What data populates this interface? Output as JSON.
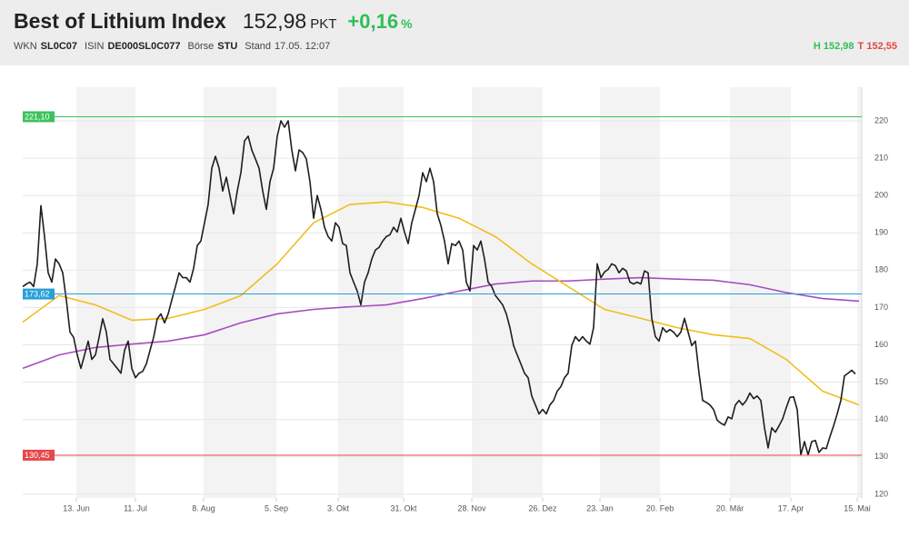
{
  "header": {
    "title": "Best of Lithium Index",
    "price": "152,98",
    "price_unit": "PKT",
    "change": "+0,16",
    "change_unit": "%",
    "fields": [
      {
        "label": "WKN",
        "value": "SL0C07"
      },
      {
        "label": "ISIN",
        "value": "DE000SL0C077"
      },
      {
        "label": "Börse",
        "value": "STU"
      },
      {
        "label": "Stand",
        "value": "17.05. 12:07"
      }
    ],
    "high_label": "H",
    "high": "152,98",
    "low_label": "T",
    "low": "152,55"
  },
  "chart_data": {
    "type": "line",
    "ylim": [
      119,
      229
    ],
    "yticks": [
      120,
      130,
      140,
      150,
      160,
      170,
      180,
      190,
      200,
      210,
      220
    ],
    "xlim": [
      0,
      230.75
    ],
    "xticks": [
      {
        "value": 14.75,
        "label": "13. Jun"
      },
      {
        "value": 31,
        "label": "11. Jul"
      },
      {
        "value": 49.75,
        "label": "8. Aug"
      },
      {
        "value": 69.75,
        "label": "5. Sep"
      },
      {
        "value": 86.75,
        "label": "3. Okt"
      },
      {
        "value": 104.75,
        "label": "31. Okt"
      },
      {
        "value": 123.5,
        "label": "28. Nov"
      },
      {
        "value": 143,
        "label": "26. Dez"
      },
      {
        "value": 158.75,
        "label": "23. Jan"
      },
      {
        "value": 175.25,
        "label": "20. Feb"
      },
      {
        "value": 194.5,
        "label": "20. Mär"
      },
      {
        "value": 211.25,
        "label": "17. Apr"
      },
      {
        "value": 229.5,
        "label": "15. Mai"
      }
    ],
    "grid": true,
    "levels": [
      {
        "value": 221.1,
        "label": "221,10",
        "color": "#3cc25f"
      },
      {
        "value": 173.62,
        "label": "173,62",
        "color": "#2a9fd8"
      },
      {
        "value": 130.45,
        "label": "130,45",
        "color": "#e5484d"
      }
    ],
    "series": [
      {
        "color": "#a64cbf",
        "x": [
          0,
          10,
          20,
          30,
          40,
          50,
          60,
          70,
          80,
          90,
          100,
          110,
          120,
          130,
          140,
          150,
          160,
          170,
          180,
          190,
          200,
          210,
          220,
          230
        ],
        "values": [
          153.7,
          157.3,
          159.3,
          160.2,
          161,
          162.7,
          165.9,
          168.3,
          169.5,
          170.2,
          170.7,
          172.4,
          174.4,
          176.3,
          177.1,
          177.1,
          177.6,
          178,
          177.6,
          177.3,
          176.1,
          174,
          172.4,
          171.7
        ]
      },
      {
        "color": "#f2bd1d",
        "x": [
          0,
          10,
          20,
          30,
          40,
          50,
          60,
          70,
          80,
          90,
          100,
          110,
          120,
          130,
          140,
          150,
          160,
          170,
          180,
          190,
          200,
          210,
          220,
          230
        ],
        "values": [
          166.1,
          173.2,
          170.7,
          166.6,
          167.1,
          169.5,
          173.2,
          181.7,
          192.7,
          197.6,
          198.3,
          196.8,
          193.9,
          189,
          181.7,
          175.6,
          169.5,
          167.1,
          164.6,
          162.7,
          161.7,
          156.1,
          147.6,
          143.9
        ]
      },
      {
        "color": "#1e1e1e",
        "values": [
          175.6,
          176.3,
          176.8,
          175.6,
          181.7,
          197.3,
          189,
          179.3,
          176.8,
          183,
          181.7,
          179.3,
          172,
          163.4,
          162,
          157.3,
          153.7,
          157.3,
          161,
          156.1,
          157.3,
          162,
          167,
          163.4,
          156.1,
          154.9,
          153.7,
          152.4,
          158.5,
          161,
          153.7,
          151.2,
          152.4,
          152.9,
          154.9,
          158.5,
          162,
          167,
          168.3,
          165.9,
          168.3,
          172,
          175.6,
          179.3,
          178,
          178,
          176.8,
          180.5,
          186.6,
          187.8,
          192.7,
          197.6,
          207.3,
          210.5,
          207.3,
          201.2,
          204.9,
          200,
          195.1,
          201.2,
          206.1,
          214.6,
          215.9,
          212.2,
          209.8,
          207.3,
          201.2,
          196.3,
          203.7,
          207.3,
          215.9,
          220,
          218.3,
          220,
          212.2,
          206.6,
          212.2,
          211.5,
          209.8,
          203.7,
          193.9,
          200,
          196.3,
          191.5,
          189,
          187.8,
          192.7,
          191.5,
          187.1,
          186.6,
          179.3,
          176.8,
          174.4,
          170.7,
          176.8,
          179.3,
          183,
          185.4,
          186.1,
          187.8,
          189,
          189.5,
          191.5,
          190.2,
          193.9,
          190.2,
          187.1,
          192.7,
          196.3,
          200,
          206.1,
          203.7,
          207.3,
          203.7,
          195.1,
          192,
          187.8,
          181.7,
          187.1,
          186.6,
          187.8,
          185.4,
          176.8,
          174.4,
          186.6,
          185.4,
          187.8,
          183,
          176.8,
          175.6,
          173.2,
          172,
          170.7,
          168.3,
          164.6,
          159.8,
          157.3,
          154.9,
          152.4,
          151.2,
          146.3,
          143.9,
          141.5,
          142.7,
          141.5,
          143.9,
          145.1,
          147.6,
          148.8,
          151.2,
          152.4,
          159.8,
          162.2,
          161,
          162.2,
          161,
          160.2,
          164.6,
          181.7,
          178,
          179.5,
          180.2,
          181.7,
          181.2,
          179.3,
          180.5,
          179.8,
          176.8,
          176.3,
          176.8,
          176.3,
          179.8,
          179.3,
          167.1,
          162.2,
          161,
          164.6,
          163.4,
          164.1,
          163.4,
          162.2,
          163.4,
          167.1,
          163.4,
          159.8,
          161,
          152.4,
          145.1,
          144.6,
          143.9,
          142.7,
          139.8,
          139,
          138.5,
          140.7,
          140.2,
          143.9,
          145.1,
          143.9,
          145.1,
          147.1,
          145.6,
          146.3,
          145.1,
          137.8,
          132.4,
          137.8,
          136.6,
          138.3,
          140.2,
          143.2,
          145.9,
          146.1,
          142.7,
          130.5,
          134.1,
          130.5,
          134.1,
          134.4,
          131.2,
          132.4,
          132.2,
          135.4,
          138.3,
          141.5,
          145.1,
          151.7,
          152.4,
          153.2,
          152.2
        ]
      }
    ]
  }
}
